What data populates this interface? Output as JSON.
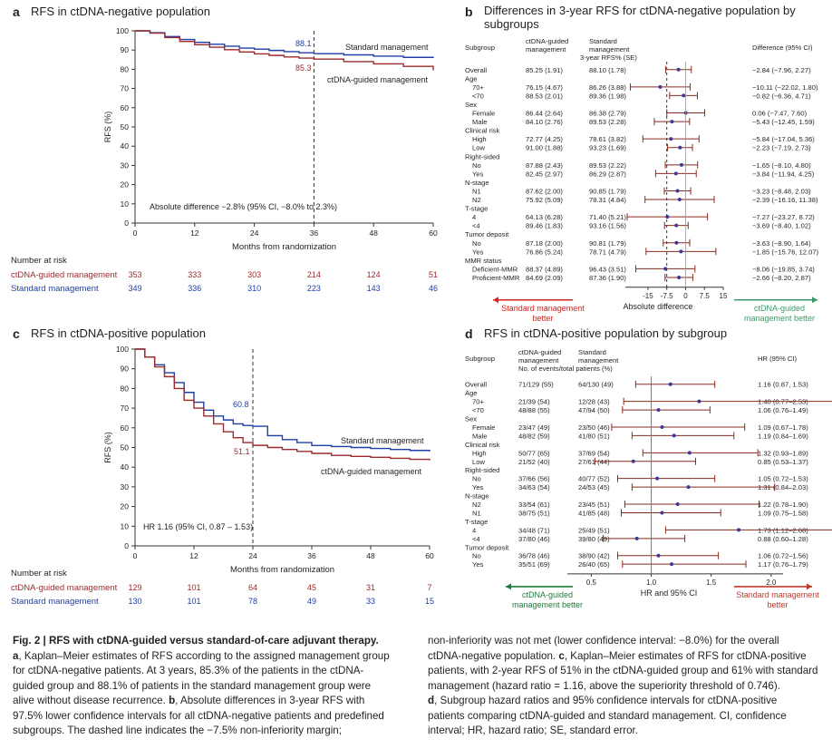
{
  "colors": {
    "ctdna": "#9e2a2b",
    "standard": "#1f3fa6",
    "forest_ctdna": "#1e7b39",
    "forest_std": "#c0392b",
    "pointA": "#3a3a9a"
  },
  "panel_a": {
    "label": "a",
    "title": "RFS in ctDNA-negative population",
    "ylabel": "RFS (%)",
    "xlabel": "Months from randomization",
    "yticks": [
      "0",
      "10",
      "20",
      "30",
      "40",
      "50",
      "60",
      "70",
      "80",
      "90",
      "100"
    ],
    "xticks": [
      "0",
      "12",
      "24",
      "36",
      "48",
      "60"
    ],
    "std_label": "Standard management",
    "ctdna_label": "ctDNA-guided management",
    "std_value": "88.1",
    "ctdna_value": "85.3",
    "annotation": "Absolute difference −2.8% (95% CI, −8.0% to 2.3%)",
    "at_risk_title": "Number at risk",
    "at_risk_ctdna": [
      "353",
      "333",
      "303",
      "214",
      "124",
      "51"
    ],
    "at_risk_std": [
      "349",
      "336",
      "310",
      "223",
      "143",
      "46"
    ]
  },
  "panel_c": {
    "label": "c",
    "title": "RFS in ctDNA-positive population",
    "ylabel": "RFS (%)",
    "xlabel": "Months from randomization",
    "yticks": [
      "0",
      "10",
      "20",
      "30",
      "40",
      "50",
      "60",
      "70",
      "80",
      "90",
      "100"
    ],
    "xticks": [
      "0",
      "12",
      "24",
      "36",
      "48",
      "60"
    ],
    "std_label": "Standard management",
    "ctdna_label": "ctDNA-guided management",
    "std_value": "60.8",
    "ctdna_value": "51.1",
    "annotation": "HR 1.16 (95% CI, 0.87 – 1.53)",
    "at_risk_title": "Number at risk",
    "at_risk_ctdna": [
      "129",
      "101",
      "64",
      "45",
      "31",
      "7"
    ],
    "at_risk_std": [
      "130",
      "101",
      "78",
      "49",
      "33",
      "15"
    ]
  },
  "panel_b": {
    "label": "b",
    "title_line1": "Differences in 3-year RFS for ctDNA-negative population by",
    "title_line2": "subgroups",
    "col_subgroup": "Subgroup",
    "col_ctdna1": "ctDNA-guided",
    "col_ctdna2": "management",
    "col_std1": "Standard",
    "col_std2": "management",
    "col_sub": "3-year RFS% (SE)",
    "col_diff": "Difference (95% CI)",
    "axis_ticks": [
      "-15",
      "-7.5",
      "0",
      "7.5",
      "15"
    ],
    "axis_title": "Absolute difference",
    "left_note1": "Standard management",
    "left_note2": "better",
    "right_note1": "ctDNA-guided",
    "right_note2": "management better"
  },
  "panel_d": {
    "label": "d",
    "title": "RFS in ctDNA-positive population by subgroup",
    "col_subgroup": "Subgroup",
    "col_ctdna1": "ctDNA-guided",
    "col_ctdna2": "management",
    "col_std1": "Standard",
    "col_std2": "management",
    "col_sub": "No. of events/total patients (%)",
    "col_hr": "HR (95% CI)",
    "axis_ticks": [
      "0.5",
      "1.0",
      "1.5",
      "2.0"
    ],
    "axis_title": "HR and 95% CI",
    "left_note1": "ctDNA-guided",
    "left_note2": "management better",
    "right_note1": "Standard management",
    "right_note2": "better"
  },
  "chart_data": [
    {
      "type": "line",
      "title": "RFS in ctDNA-negative population",
      "xlabel": "Months from randomization",
      "ylabel": "RFS (%)",
      "xlim": [
        0,
        60
      ],
      "ylim": [
        0,
        100
      ],
      "series": [
        {
          "name": "Standard management",
          "x": [
            0,
            3,
            6,
            9,
            12,
            15,
            18,
            21,
            24,
            27,
            30,
            33,
            36,
            42,
            48,
            54,
            60
          ],
          "values": [
            100,
            99,
            97,
            95.5,
            94,
            93,
            92,
            91,
            90.5,
            89.8,
            89.2,
            88.6,
            88.1,
            87.5,
            86.8,
            86.2,
            85.8
          ]
        },
        {
          "name": "ctDNA-guided management",
          "x": [
            0,
            3,
            6,
            9,
            12,
            15,
            18,
            21,
            24,
            27,
            30,
            33,
            36,
            42,
            48,
            54,
            60
          ],
          "values": [
            100,
            98.8,
            96.5,
            94.5,
            92.8,
            91.5,
            90.2,
            89,
            88,
            87.2,
            86.4,
            85.8,
            85.3,
            84,
            82.8,
            81.5,
            79.5
          ]
        }
      ]
    },
    {
      "type": "table",
      "title": "Differences in 3-year RFS for ctDNA-negative population by subgroups",
      "rows": [
        {
          "label": "Overall",
          "indent": 0,
          "ctdna": "85.25 (1.91)",
          "std": "88.10 (1.78)",
          "ci": "−2.84 (−7.96, 2.27)",
          "est": -2.84,
          "lo": -7.96,
          "hi": 2.27
        },
        {
          "label": "Age",
          "indent": 0,
          "header": true
        },
        {
          "label": "70+",
          "indent": 1,
          "ctdna": "76.15 (4.67)",
          "std": "86.26 (3.88)",
          "ci": "−10.11 (−22.02, 1.80)",
          "est": -10.11,
          "lo": -22.02,
          "hi": 1.8
        },
        {
          "label": "<70",
          "indent": 1,
          "ctdna": "88.53 (2.01)",
          "std": "89.36 (1.98)",
          "ci": "−0.82 (−6.36, 4.71)",
          "est": -0.82,
          "lo": -6.36,
          "hi": 4.71
        },
        {
          "label": "Sex",
          "indent": 0,
          "header": true
        },
        {
          "label": "Female",
          "indent": 1,
          "ctdna": "86.44 (2.64)",
          "std": "86.38 (2.79)",
          "ci": "0.06 (−7.47, 7.60)",
          "est": 0.06,
          "lo": -7.47,
          "hi": 7.6
        },
        {
          "label": "Male",
          "indent": 1,
          "ctdna": "84.10 (2.76)",
          "std": "89.53 (2.28)",
          "ci": "−5.43 (−12.45, 1.59)",
          "est": -5.43,
          "lo": -12.45,
          "hi": 1.59
        },
        {
          "label": "Clinical risk",
          "indent": 0,
          "header": true
        },
        {
          "label": "High",
          "indent": 1,
          "ctdna": "72.77 (4.25)",
          "std": "78.61 (3.82)",
          "ci": "−5.84 (−17.04, 5.36)",
          "est": -5.84,
          "lo": -17.04,
          "hi": 5.36
        },
        {
          "label": "Low",
          "indent": 1,
          "ctdna": "91.00 (1.88)",
          "std": "93.23 (1.69)",
          "ci": "−2.23 (−7.19, 2.73)",
          "est": -2.23,
          "lo": -7.19,
          "hi": 2.73
        },
        {
          "label": "Right-sided",
          "indent": 0,
          "header": true
        },
        {
          "label": "No",
          "indent": 1,
          "ctdna": "87.88 (2.43)",
          "std": "89.53 (2.22)",
          "ci": "−1.65 (−8.10, 4.80)",
          "est": -1.65,
          "lo": -8.1,
          "hi": 4.8
        },
        {
          "label": "Yes",
          "indent": 1,
          "ctdna": "82.45 (2.97)",
          "std": "86.29 (2.87)",
          "ci": "−3.84 (−11.94, 4.25)",
          "est": -3.84,
          "lo": -11.94,
          "hi": 4.25
        },
        {
          "label": "N-stage",
          "indent": 0,
          "header": true
        },
        {
          "label": "N1",
          "indent": 1,
          "ctdna": "87.62 (2.00)",
          "std": "90.85 (1.79)",
          "ci": "−3.23 (−8.48, 2.03)",
          "est": -3.23,
          "lo": -8.48,
          "hi": 2.03
        },
        {
          "label": "N2",
          "indent": 1,
          "ctdna": "75.92 (5.09)",
          "std": "78.31 (4.84)",
          "ci": "−2.39 (−16.16, 11.38)",
          "est": -2.39,
          "lo": -16.16,
          "hi": 11.38
        },
        {
          "label": "T-stage",
          "indent": 0,
          "header": true
        },
        {
          "label": "4",
          "indent": 1,
          "ctdna": "64.13 (6.28)",
          "std": "71.40 (5.21)",
          "ci": "−7.27 (−23.27, 8.72)",
          "est": -7.27,
          "lo": -23.27,
          "hi": 8.72
        },
        {
          "label": "<4",
          "indent": 1,
          "ctdna": "89.46 (1.83)",
          "std": "93.16 (1.56)",
          "ci": "−3.69 (−8.40, 1.02)",
          "est": -3.69,
          "lo": -8.4,
          "hi": 1.02
        },
        {
          "label": "Tumor deposit",
          "indent": 0,
          "header": true
        },
        {
          "label": "No",
          "indent": 1,
          "ctdna": "87.18 (2.00)",
          "std": "90.81 (1.79)",
          "ci": "−3.63 (−8.90, 1.64)",
          "est": -3.63,
          "lo": -8.9,
          "hi": 1.64
        },
        {
          "label": "Yes",
          "indent": 1,
          "ctdna": "76.86 (5.24)",
          "std": "78.71 (4.79)",
          "ci": "−1.85 (−15.76, 12.07)",
          "est": -1.85,
          "lo": -15.76,
          "hi": 12.07
        },
        {
          "label": "MMR status",
          "indent": 0,
          "header": true
        },
        {
          "label": "Deficient-MMR",
          "indent": 1,
          "ctdna": "88.37 (4.89)",
          "std": "96.43 (3.51)",
          "ci": "−8.06 (−19.85, 3.74)",
          "est": -8.06,
          "lo": -19.85,
          "hi": 3.74
        },
        {
          "label": "Proficient-MMR",
          "indent": 1,
          "ctdna": "84.69 (2.09)",
          "std": "87.36 (1.90)",
          "ci": "−2.66 (−8.20, 2.87)",
          "est": -2.66,
          "lo": -8.2,
          "hi": 2.87
        }
      ],
      "xlim": [
        -24,
        15
      ],
      "margin": -7.5
    },
    {
      "type": "line",
      "title": "RFS in ctDNA-positive population",
      "xlabel": "Months from randomization",
      "ylabel": "RFS (%)",
      "xlim": [
        0,
        60
      ],
      "ylim": [
        0,
        100
      ],
      "series": [
        {
          "name": "Standard management",
          "x": [
            0,
            2,
            4,
            6,
            8,
            10,
            12,
            14,
            16,
            18,
            20,
            22,
            24,
            27,
            30,
            33,
            36,
            40,
            44,
            48,
            52,
            56,
            60
          ],
          "values": [
            100,
            96,
            92,
            88,
            83,
            78,
            73,
            69,
            66,
            64,
            62,
            61.2,
            60.8,
            56,
            54,
            52.5,
            51,
            50.5,
            50,
            49.5,
            49,
            48.5,
            48
          ]
        },
        {
          "name": "ctDNA-guided management",
          "x": [
            0,
            2,
            4,
            6,
            8,
            10,
            12,
            14,
            16,
            18,
            20,
            22,
            24,
            27,
            30,
            33,
            36,
            40,
            44,
            48,
            52,
            56,
            60
          ],
          "values": [
            100,
            96,
            91,
            86,
            80,
            74,
            70,
            66,
            62,
            58,
            55,
            52.5,
            51.1,
            50,
            49,
            48,
            47,
            46,
            45.5,
            45,
            44.5,
            44,
            43.5
          ]
        }
      ]
    },
    {
      "type": "table",
      "title": "RFS in ctDNA-positive population by subgroup",
      "rows": [
        {
          "label": "Overall",
          "indent": 0,
          "ctdna": "71/129 (55)",
          "std": "64/130 (49)",
          "ci": "1.16 (0.87, 1.53)",
          "est": 1.16,
          "lo": 0.87,
          "hi": 1.53
        },
        {
          "label": "Age",
          "indent": 0,
          "header": true
        },
        {
          "label": "70+",
          "indent": 1,
          "ctdna": "21/39 (54)",
          "std": "12/28 (43)",
          "ci": "1.40 (0.77–2.53)",
          "est": 1.4,
          "lo": 0.77,
          "hi": 2.53
        },
        {
          "label": "<70",
          "indent": 1,
          "ctdna": "48/88 (55)",
          "std": "47/94 (50)",
          "ci": "1.06 (0.76–1.49)",
          "est": 1.06,
          "lo": 0.76,
          "hi": 1.49
        },
        {
          "label": "Sex",
          "indent": 0,
          "header": true
        },
        {
          "label": "Female",
          "indent": 1,
          "ctdna": "23/47 (49)",
          "std": "23/50 (46)",
          "ci": "1.09 (0.67–1.78)",
          "est": 1.09,
          "lo": 0.67,
          "hi": 1.78
        },
        {
          "label": "Male",
          "indent": 1,
          "ctdna": "48/82 (59)",
          "std": "41/80 (51)",
          "ci": "1.19 (0.84–1.69)",
          "est": 1.19,
          "lo": 0.84,
          "hi": 1.69
        },
        {
          "label": "Clinical risk",
          "indent": 0,
          "header": true
        },
        {
          "label": "High",
          "indent": 1,
          "ctdna": "50/77 (65)",
          "std": "37/69 (54)",
          "ci": "1.32 (0.93–1.89)",
          "est": 1.32,
          "lo": 0.93,
          "hi": 1.89
        },
        {
          "label": "Low",
          "indent": 1,
          "ctdna": "21/52 (40)",
          "std": "27/61 (44)",
          "ci": "0.85 (0.53–1.37)",
          "est": 0.85,
          "lo": 0.53,
          "hi": 1.37
        },
        {
          "label": "Right-sided",
          "indent": 0,
          "header": true
        },
        {
          "label": "No",
          "indent": 1,
          "ctdna": "37/66 (56)",
          "std": "40/77 (52)",
          "ci": "1.05 (0.72–1.53)",
          "est": 1.05,
          "lo": 0.72,
          "hi": 1.53
        },
        {
          "label": "Yes",
          "indent": 1,
          "ctdna": "34/63 (54)",
          "std": "24/53 (45)",
          "ci": "1.31 (0.84–2.03)",
          "est": 1.31,
          "lo": 0.84,
          "hi": 2.03
        },
        {
          "label": "N-stage",
          "indent": 0,
          "header": true
        },
        {
          "label": "N2",
          "indent": 1,
          "ctdna": "33/54 (61)",
          "std": "23/45 (51)",
          "ci": "1.22 (0.78–1.90)",
          "est": 1.22,
          "lo": 0.78,
          "hi": 1.9
        },
        {
          "label": "N1",
          "indent": 1,
          "ctdna": "38/75 (51)",
          "std": "41/85 (48)",
          "ci": "1.09 (0.75–1.58)",
          "est": 1.09,
          "lo": 0.75,
          "hi": 1.58
        },
        {
          "label": "T-stage",
          "indent": 0,
          "header": true
        },
        {
          "label": "4",
          "indent": 1,
          "ctdna": "34/48 (71)",
          "std": "25/49 (51)",
          "ci": "1.73 (1.12–2.68)",
          "est": 1.73,
          "lo": 1.12,
          "hi": 2.68
        },
        {
          "label": "<4",
          "indent": 1,
          "ctdna": "37/80 (46)",
          "std": "39/80 (49)",
          "ci": "0.88 (0.60–1.28)",
          "est": 0.88,
          "lo": 0.6,
          "hi": 1.28
        },
        {
          "label": "Tumor deposit",
          "indent": 0,
          "header": true
        },
        {
          "label": "No",
          "indent": 1,
          "ctdna": "36/78 (46)",
          "std": "38/90 (42)",
          "ci": "1.06 (0.72–1.56)",
          "est": 1.06,
          "lo": 0.72,
          "hi": 1.56
        },
        {
          "label": "Yes",
          "indent": 1,
          "ctdna": "35/51 (69)",
          "std": "26/40 (65)",
          "ci": "1.17 (0.76–1.79)",
          "est": 1.17,
          "lo": 0.76,
          "hi": 1.79
        }
      ],
      "xlim": [
        0.3,
        2.1
      ],
      "ref": 1.0
    }
  ],
  "caption": {
    "left": [
      {
        "b": "Fig. 2 | RFS with ctDNA-guided versus standard-of-care adjuvant therapy.",
        "t": ""
      },
      {
        "b": "a",
        "t": ", Kaplan–Meier estimates of RFS according to the assigned management group"
      },
      {
        "b": "",
        "t": "for ctDNA-negative patients. At 3 years, 85.3% of the patients in the ctDNA-"
      },
      {
        "b": "",
        "t": "guided group and 88.1% of patients in the standard management group were"
      },
      {
        "b": "",
        "t": "alive without disease recurrence. "
      },
      {
        "b": "",
        "t": "97.5% lower confidence intervals for all ctDNA-negative patients and predefined"
      },
      {
        "b": "",
        "t": "subgroups. The dashed line indicates the −7.5% non-inferiority margin;"
      }
    ],
    "left_b_mid": "b",
    "left_b_rest": ", Absolute differences in 3-year RFS with",
    "right": [
      {
        "b": "",
        "t": "non-inferiority was not met (lower confidence interval: −8.0%) for the overall"
      },
      {
        "b": "",
        "t": "ctDNA-negative population. "
      },
      {
        "b": "",
        "t": "patients, with 2-year RFS of 51% in the ctDNA-guided group and 61% with standard"
      },
      {
        "b": "",
        "t": "management (hazard ratio = 1.16, above the superiority threshold of 0.746)."
      },
      {
        "b": "d",
        "t": ", Subgroup hazard ratios and 95% confidence intervals for ctDNA-positive"
      },
      {
        "b": "",
        "t": "patients comparing ctDNA-guided and standard management. CI, confidence"
      },
      {
        "b": "",
        "t": "interval; HR, hazard ratio; SE, standard error."
      }
    ],
    "right_c_mid": "c",
    "right_c_rest": ", Kaplan–Meier estimates of RFS for ctDNA-positive"
  }
}
